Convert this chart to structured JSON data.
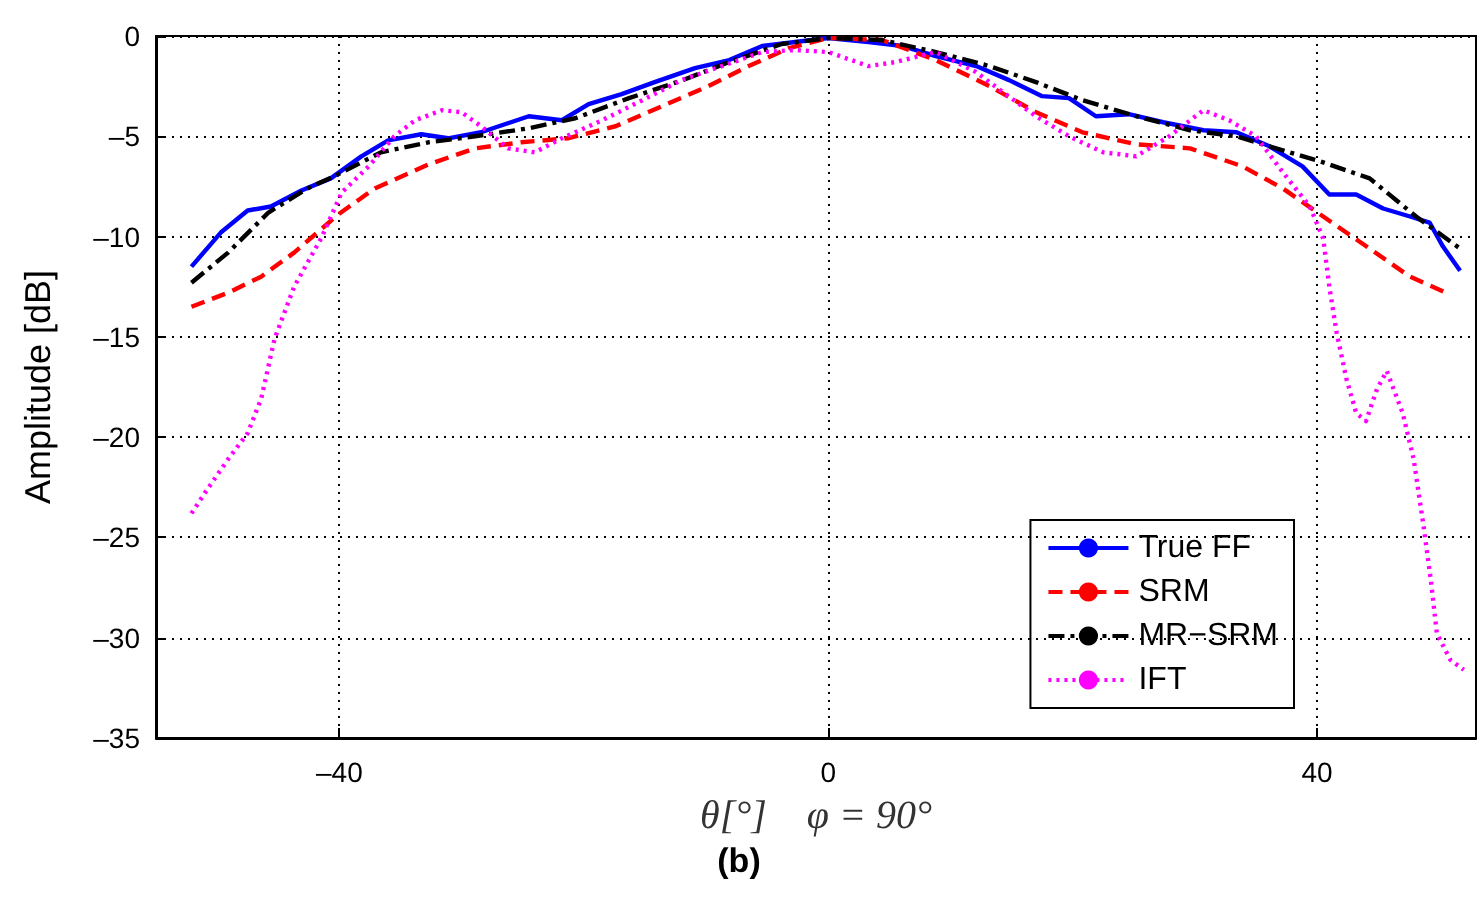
{
  "chart_data": {
    "type": "line",
    "xlabel": "θ[°]    φ = 90°",
    "ylabel": "Amplitude [dB]",
    "annotations": [
      "(b)"
    ],
    "xlim": [
      -55,
      53
    ],
    "xticks": [
      {
        "value": -40,
        "label": "–40"
      },
      0,
      40
    ],
    "ylim": [
      -35,
      0
    ],
    "yticks": [
      0,
      {
        "value": -5,
        "label": "–5"
      },
      {
        "value": -10,
        "label": "–10"
      },
      {
        "value": -15,
        "label": "–15"
      },
      {
        "value": -20,
        "label": "–20"
      },
      {
        "value": -25,
        "label": "–25"
      },
      {
        "value": -30,
        "label": "–30"
      },
      {
        "value": -35,
        "label": "–35"
      }
    ],
    "grid": true,
    "legend": "bottom right",
    "marker": "none",
    "series": [
      {
        "name": "True FF",
        "color": "#0000ff",
        "line_style": "solid",
        "x": [
          -52.1,
          -49.7,
          -47.5,
          -45.6,
          -43.1,
          -40.7,
          -38.2,
          -36,
          -33.3,
          -31.1,
          -28.4,
          -24.5,
          -21.8,
          -19.6,
          -16.9,
          -14.2,
          -10.9,
          -8.1,
          -5.4,
          -2.7,
          0,
          3.3,
          6.1,
          8.8,
          12.1,
          14.8,
          17.5,
          19.7,
          21.9,
          24.6,
          27.4,
          30.7,
          33.4,
          36.1,
          38.8,
          41,
          43.2,
          45.4,
          47.6,
          49.2,
          50.3,
          51.7
        ],
        "values": [
          -11.5,
          -9.8,
          -8.7,
          -8.5,
          -7.7,
          -7.1,
          -6,
          -5.2,
          -4.9,
          -5.1,
          -4.8,
          -4,
          -4.2,
          -3.4,
          -2.9,
          -2.3,
          -1.6,
          -1.2,
          -0.5,
          -0.3,
          -0.1,
          -0.3,
          -0.5,
          -1,
          -1.5,
          -2.2,
          -3,
          -3.1,
          -4,
          -3.9,
          -4.3,
          -4.7,
          -4.8,
          -5.5,
          -6.5,
          -7.9,
          -7.9,
          -8.6,
          -9,
          -9.3,
          -10.5,
          -11.7
        ]
      },
      {
        "name": "SRM",
        "color": "#ff0000",
        "line_style": "dashed",
        "x": [
          -52.1,
          -49.1,
          -46.4,
          -43.7,
          -40.1,
          -37.1,
          -32.7,
          -28.9,
          -25.1,
          -21.3,
          -17.4,
          -13.6,
          -9.8,
          -6.5,
          -3.2,
          0,
          4.4,
          8.8,
          13.2,
          17,
          20.8,
          25.2,
          29.6,
          33.9,
          37.2,
          40.5,
          44.3,
          47.6,
          50.9
        ],
        "values": [
          -13.5,
          -12.8,
          -12,
          -10.8,
          -8.9,
          -7.6,
          -6.4,
          -5.6,
          -5.3,
          -5.1,
          -4.5,
          -3.5,
          -2.5,
          -1.5,
          -0.6,
          -0.1,
          -0.2,
          -1.2,
          -2.5,
          -3.8,
          -4.8,
          -5.4,
          -5.6,
          -6.5,
          -7.6,
          -9,
          -10.6,
          -12,
          -12.9
        ]
      },
      {
        "name": "MR−SRM",
        "color": "#000000",
        "line_style": "dashdot",
        "x": [
          -52.1,
          -49.1,
          -45.8,
          -42.6,
          -40.1,
          -36.6,
          -32.7,
          -28.9,
          -24.5,
          -20.7,
          -16.3,
          -11.9,
          -8.1,
          -3.8,
          0,
          4.4,
          8.8,
          13.2,
          17,
          20.8,
          25.2,
          29.6,
          33.4,
          37.2,
          40.5,
          44.3,
          48.1,
          51.7
        ],
        "values": [
          -12.3,
          -10.8,
          -8.8,
          -7.6,
          -6.9,
          -5.8,
          -5.3,
          -5,
          -4.6,
          -4.1,
          -3.1,
          -2.2,
          -1.3,
          -0.4,
          -0.1,
          -0.2,
          -0.8,
          -1.5,
          -2.3,
          -3.2,
          -4,
          -4.7,
          -5,
          -5.7,
          -6.3,
          -7.1,
          -9,
          -10.6
        ]
      },
      {
        "name": "IFT",
        "color": "#ff00ff",
        "line_style": "dotted",
        "x": [
          -52.1,
          -50.8,
          -49.1,
          -47.5,
          -46.4,
          -45.3,
          -43.7,
          -41.5,
          -39.8,
          -37.6,
          -35.5,
          -33.8,
          -31.6,
          -30,
          -28.4,
          -26.2,
          -24,
          -21.8,
          -18.5,
          -15.2,
          -12,
          -8.7,
          -5.4,
          -2.7,
          0,
          3.3,
          5.5,
          8.8,
          12.1,
          14.3,
          17,
          19.7,
          22.5,
          25.2,
          27.9,
          30.7,
          32.8,
          35,
          37.2,
          39.4,
          40.5,
          41,
          41.6,
          42.4,
          43.2,
          44,
          44.9,
          45.7,
          47,
          47.9,
          48.7,
          49.3,
          49.8,
          50.9,
          52
        ],
        "values": [
          -23.8,
          -22.6,
          -21.1,
          -19.8,
          -18.1,
          -15.1,
          -12.5,
          -10.1,
          -7.8,
          -6.5,
          -5,
          -4.2,
          -3.7,
          -3.8,
          -4.5,
          -5.6,
          -5.8,
          -5.1,
          -4.2,
          -3.2,
          -2.2,
          -1.5,
          -0.8,
          -0.7,
          -0.8,
          -1.5,
          -1.3,
          -0.8,
          -1.8,
          -2.8,
          -4,
          -5,
          -5.8,
          -6,
          -5,
          -3.7,
          -4.2,
          -5,
          -6.8,
          -8.5,
          -10.1,
          -12.5,
          -14.8,
          -17.1,
          -18.8,
          -19.2,
          -17.6,
          -16.7,
          -18.8,
          -21.1,
          -24.4,
          -27.1,
          -29.8,
          -31.1,
          -31.6
        ]
      }
    ]
  }
}
